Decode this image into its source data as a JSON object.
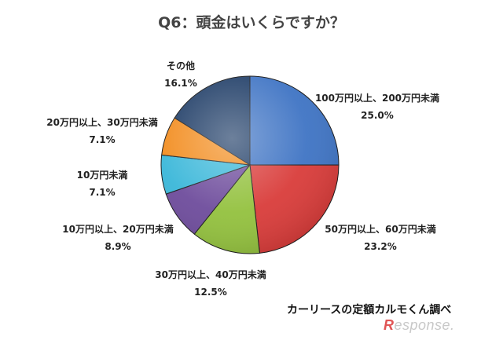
{
  "title": "Q6：頭金はいくらですか？",
  "source": "カーリースの定額カルモくん調べ",
  "watermark": "Response.",
  "chart_data": {
    "type": "pie",
    "title": "Q6：頭金はいくらですか？",
    "start_angle_deg": 0,
    "direction": "clockwise",
    "slices": [
      {
        "label": "100万円以上、200万円未満",
        "pct_label": "25.0%",
        "value": 25.0,
        "color": "#3f74c4"
      },
      {
        "label": "50万円以上、60万円未満",
        "pct_label": "23.2%",
        "value": 23.2,
        "color": "#d93c3a"
      },
      {
        "label": "30万円以上、40万円未満",
        "pct_label": "12.5%",
        "value": 12.5,
        "color": "#93c13e"
      },
      {
        "label": "10万円以上、20万円未満",
        "pct_label": "8.9%",
        "value": 8.9,
        "color": "#6e4c9c"
      },
      {
        "label": "10万円未満",
        "pct_label": "7.1%",
        "value": 7.1,
        "color": "#3ab7d9"
      },
      {
        "label": "20万円以上、30万円未満",
        "pct_label": "7.1%",
        "value": 7.1,
        "color": "#f28c1e"
      },
      {
        "label": "その他",
        "pct_label": "16.1%",
        "value": 16.1,
        "color": "#1e3c66"
      }
    ],
    "source": "カーリースの定額カルモくん調べ"
  }
}
